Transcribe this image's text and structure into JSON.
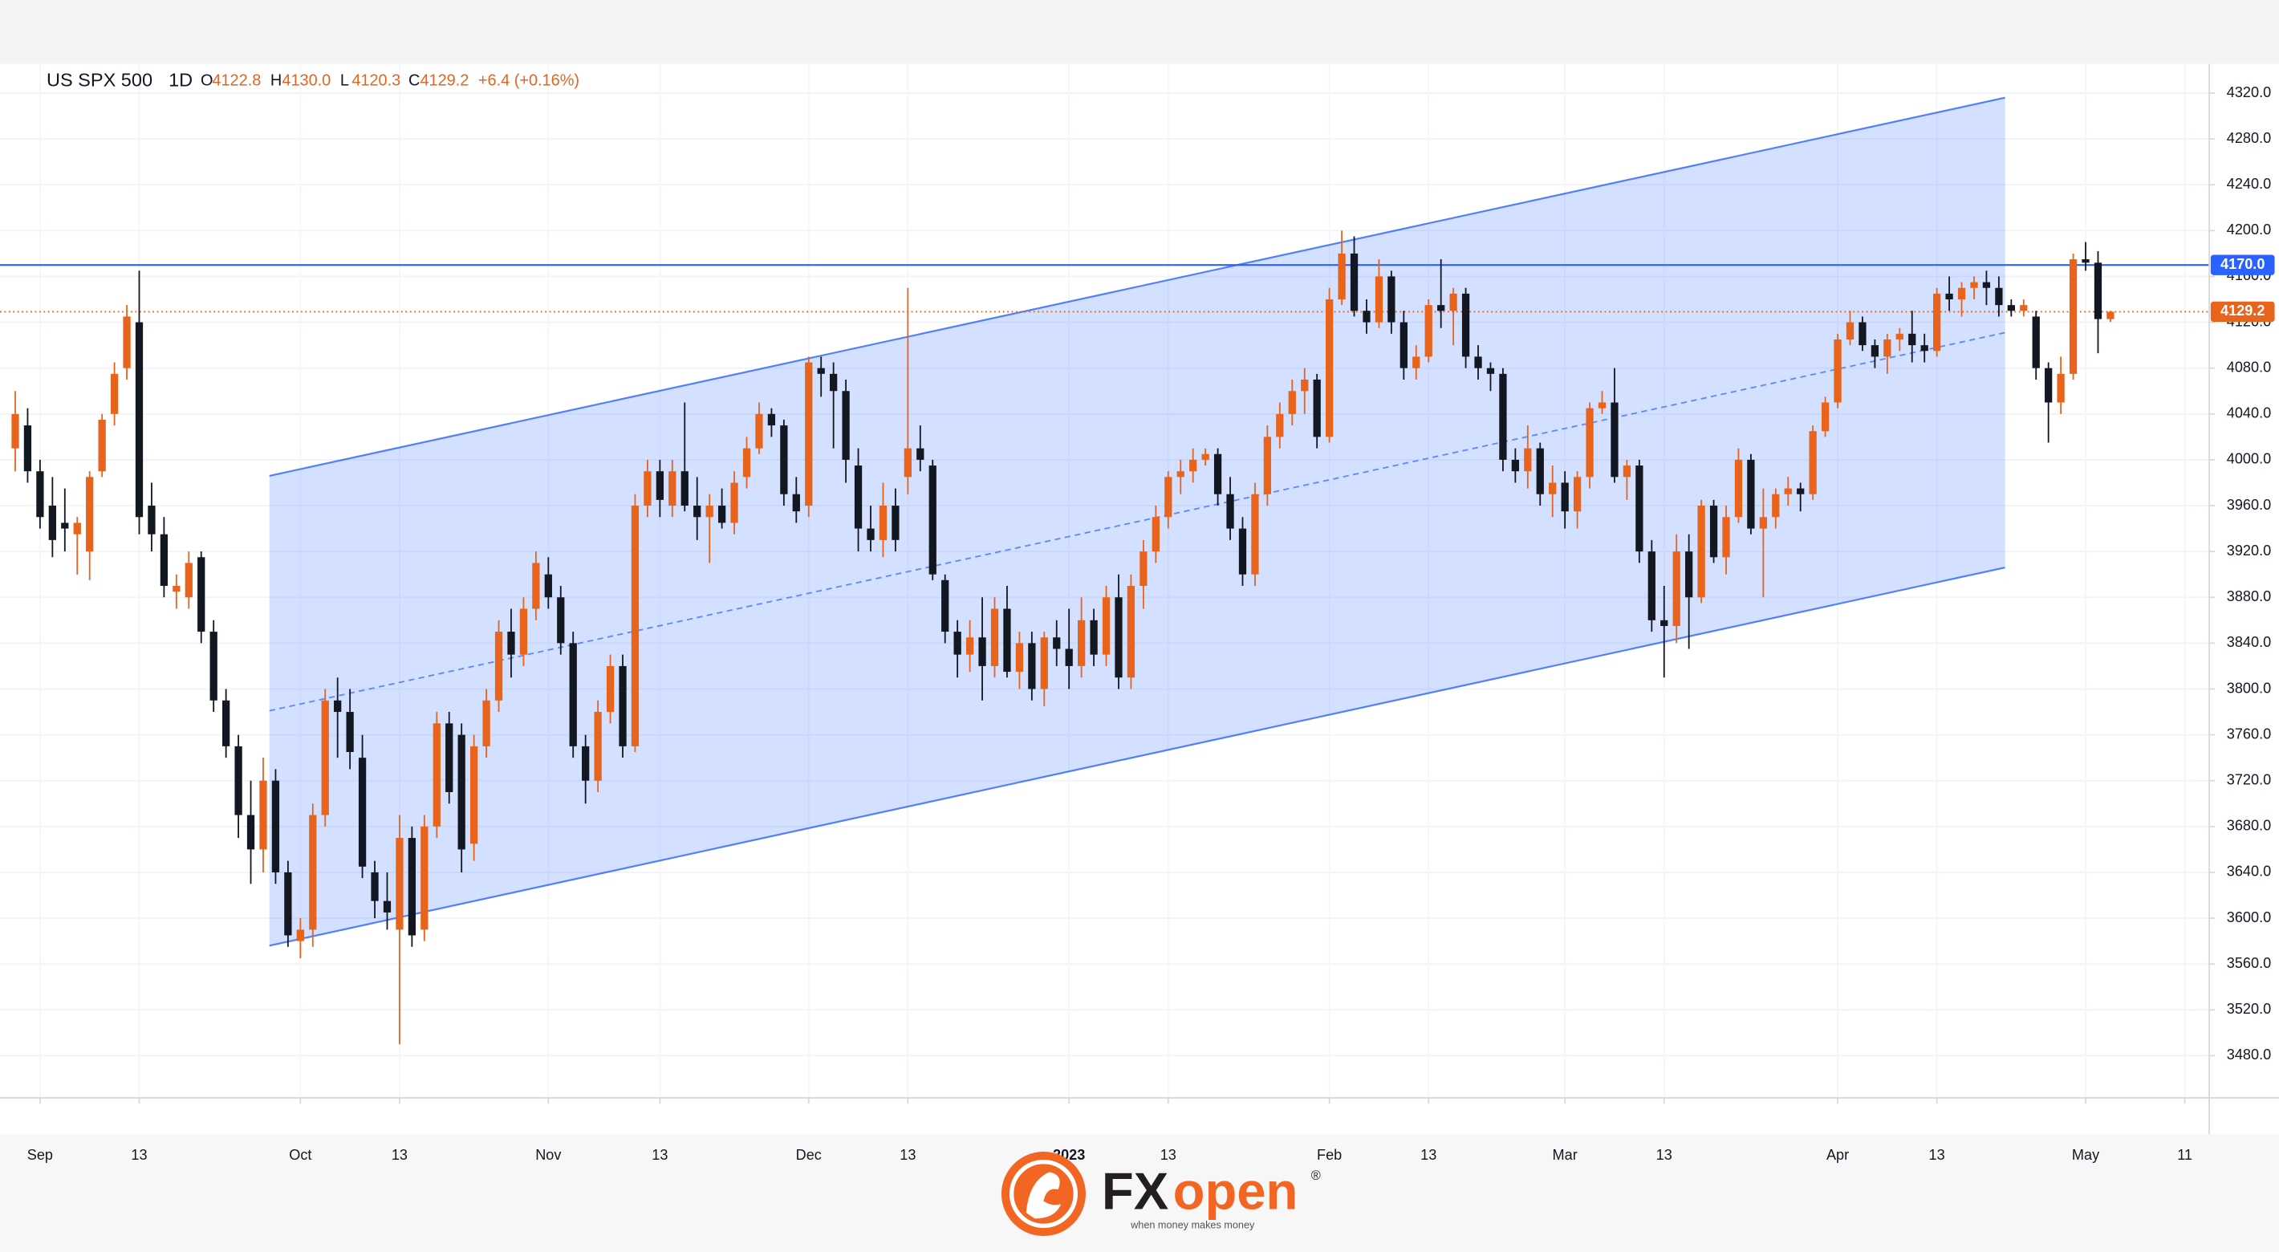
{
  "chart_data": {
    "type": "candlestick",
    "title": "US SPX 500",
    "interval": "1D",
    "header": [
      {
        "key": "O",
        "value": "4122.8"
      },
      {
        "key": "H",
        "value": "4130.0"
      },
      {
        "key": "L",
        "value": "4120.3"
      },
      {
        "key": "C",
        "value": "4129.2"
      }
    ],
    "change": "+6.4 (+0.16%)",
    "up_color": "#e8631b",
    "down_color": "#131722",
    "grid": true,
    "candles": [
      [
        4010,
        4060,
        3990,
        4040
      ],
      [
        4030,
        4045,
        3980,
        3990
      ],
      [
        3990,
        4000,
        3940,
        3950
      ],
      [
        3960,
        3985,
        3915,
        3930
      ],
      [
        3945,
        3975,
        3920,
        3940
      ],
      [
        3935,
        3950,
        3900,
        3945
      ],
      [
        3920,
        3990,
        3895,
        3985
      ],
      [
        3990,
        4040,
        3985,
        4035
      ],
      [
        4040,
        4085,
        4030,
        4075
      ],
      [
        4080,
        4135,
        4070,
        4125
      ],
      [
        4120,
        4165,
        3935,
        3950
      ],
      [
        3960,
        3980,
        3920,
        3935
      ],
      [
        3935,
        3950,
        3880,
        3890
      ],
      [
        3885,
        3900,
        3870,
        3890
      ],
      [
        3880,
        3920,
        3870,
        3910
      ],
      [
        3915,
        3920,
        3840,
        3850
      ],
      [
        3850,
        3860,
        3780,
        3790
      ],
      [
        3790,
        3800,
        3740,
        3750
      ],
      [
        3750,
        3760,
        3670,
        3690
      ],
      [
        3690,
        3720,
        3630,
        3660
      ],
      [
        3660,
        3740,
        3640,
        3720
      ],
      [
        3720,
        3730,
        3630,
        3640
      ],
      [
        3640,
        3650,
        3575,
        3585
      ],
      [
        3580,
        3600,
        3565,
        3590
      ],
      [
        3590,
        3700,
        3575,
        3690
      ],
      [
        3690,
        3800,
        3680,
        3790
      ],
      [
        3790,
        3810,
        3740,
        3780
      ],
      [
        3780,
        3800,
        3730,
        3745
      ],
      [
        3740,
        3760,
        3635,
        3645
      ],
      [
        3640,
        3650,
        3600,
        3615
      ],
      [
        3615,
        3640,
        3590,
        3605
      ],
      [
        3590,
        3690,
        3490,
        3670
      ],
      [
        3670,
        3680,
        3575,
        3585
      ],
      [
        3590,
        3690,
        3580,
        3680
      ],
      [
        3680,
        3780,
        3670,
        3770
      ],
      [
        3770,
        3780,
        3700,
        3710
      ],
      [
        3760,
        3770,
        3640,
        3660
      ],
      [
        3665,
        3760,
        3650,
        3750
      ],
      [
        3750,
        3800,
        3740,
        3790
      ],
      [
        3790,
        3860,
        3780,
        3850
      ],
      [
        3850,
        3870,
        3810,
        3830
      ],
      [
        3830,
        3880,
        3820,
        3870
      ],
      [
        3870,
        3920,
        3860,
        3910
      ],
      [
        3900,
        3915,
        3870,
        3880
      ],
      [
        3880,
        3890,
        3830,
        3840
      ],
      [
        3840,
        3850,
        3740,
        3750
      ],
      [
        3750,
        3760,
        3700,
        3720
      ],
      [
        3720,
        3790,
        3710,
        3780
      ],
      [
        3780,
        3830,
        3770,
        3820
      ],
      [
        3820,
        3830,
        3740,
        3750
      ],
      [
        3750,
        3970,
        3745,
        3960
      ],
      [
        3960,
        4000,
        3950,
        3990
      ],
      [
        3990,
        4000,
        3950,
        3965
      ],
      [
        3960,
        4000,
        3950,
        3990
      ],
      [
        3990,
        4050,
        3955,
        3960
      ],
      [
        3960,
        3985,
        3930,
        3950
      ],
      [
        3950,
        3970,
        3910,
        3960
      ],
      [
        3960,
        3975,
        3940,
        3945
      ],
      [
        3945,
        3990,
        3935,
        3980
      ],
      [
        3985,
        4020,
        3975,
        4010
      ],
      [
        4010,
        4050,
        4005,
        4040
      ],
      [
        4040,
        4045,
        4020,
        4030
      ],
      [
        4030,
        4035,
        3960,
        3970
      ],
      [
        3970,
        3985,
        3945,
        3955
      ],
      [
        3960,
        4090,
        3950,
        4085
      ],
      [
        4080,
        4090,
        4055,
        4075
      ],
      [
        4075,
        4085,
        4010,
        4060
      ],
      [
        4060,
        4070,
        3980,
        4000
      ],
      [
        3995,
        4010,
        3920,
        3940
      ],
      [
        3940,
        3960,
        3920,
        3930
      ],
      [
        3930,
        3980,
        3915,
        3960
      ],
      [
        3960,
        3975,
        3920,
        3930
      ],
      [
        3985,
        4150,
        3970,
        4010
      ],
      [
        4010,
        4030,
        3990,
        4000
      ],
      [
        3995,
        4000,
        3895,
        3900
      ],
      [
        3895,
        3900,
        3840,
        3850
      ],
      [
        3850,
        3860,
        3810,
        3830
      ],
      [
        3830,
        3860,
        3815,
        3845
      ],
      [
        3845,
        3880,
        3790,
        3820
      ],
      [
        3820,
        3880,
        3810,
        3870
      ],
      [
        3870,
        3890,
        3810,
        3815
      ],
      [
        3815,
        3850,
        3800,
        3840
      ],
      [
        3840,
        3850,
        3790,
        3800
      ],
      [
        3800,
        3850,
        3785,
        3845
      ],
      [
        3845,
        3860,
        3820,
        3835
      ],
      [
        3835,
        3870,
        3800,
        3820
      ],
      [
        3820,
        3880,
        3810,
        3860
      ],
      [
        3860,
        3870,
        3820,
        3830
      ],
      [
        3830,
        3890,
        3820,
        3880
      ],
      [
        3880,
        3900,
        3800,
        3810
      ],
      [
        3810,
        3900,
        3800,
        3890
      ],
      [
        3890,
        3930,
        3870,
        3920
      ],
      [
        3920,
        3960,
        3910,
        3950
      ],
      [
        3950,
        3990,
        3940,
        3985
      ],
      [
        3985,
        4000,
        3970,
        3990
      ],
      [
        3990,
        4010,
        3980,
        4000
      ],
      [
        4000,
        4010,
        3995,
        4005
      ],
      [
        4005,
        4010,
        3960,
        3970
      ],
      [
        3970,
        3985,
        3930,
        3940
      ],
      [
        3940,
        3950,
        3890,
        3900
      ],
      [
        3900,
        3980,
        3890,
        3970
      ],
      [
        3970,
        4030,
        3960,
        4020
      ],
      [
        4020,
        4050,
        4010,
        4040
      ],
      [
        4040,
        4070,
        4030,
        4060
      ],
      [
        4060,
        4080,
        4040,
        4070
      ],
      [
        4070,
        4075,
        4010,
        4020
      ],
      [
        4020,
        4150,
        4015,
        4140
      ],
      [
        4140,
        4200,
        4135,
        4180
      ],
      [
        4180,
        4195,
        4125,
        4130
      ],
      [
        4130,
        4140,
        4110,
        4120
      ],
      [
        4120,
        4175,
        4115,
        4160
      ],
      [
        4160,
        4165,
        4110,
        4120
      ],
      [
        4120,
        4130,
        4070,
        4080
      ],
      [
        4080,
        4100,
        4070,
        4090
      ],
      [
        4090,
        4140,
        4085,
        4135
      ],
      [
        4135,
        4175,
        4115,
        4130
      ],
      [
        4130,
        4150,
        4100,
        4145
      ],
      [
        4145,
        4150,
        4080,
        4090
      ],
      [
        4090,
        4100,
        4070,
        4080
      ],
      [
        4080,
        4085,
        4060,
        4075
      ],
      [
        4075,
        4080,
        3990,
        4000
      ],
      [
        4000,
        4010,
        3980,
        3990
      ],
      [
        3990,
        4030,
        3975,
        4010
      ],
      [
        4010,
        4015,
        3960,
        3970
      ],
      [
        3970,
        3995,
        3950,
        3980
      ],
      [
        3980,
        3990,
        3940,
        3955
      ],
      [
        3955,
        3990,
        3940,
        3985
      ],
      [
        3985,
        4050,
        3975,
        4045
      ],
      [
        4045,
        4060,
        4040,
        4050
      ],
      [
        4050,
        4080,
        3980,
        3985
      ],
      [
        3985,
        4000,
        3965,
        3995
      ],
      [
        3995,
        4000,
        3910,
        3920
      ],
      [
        3920,
        3930,
        3850,
        3860
      ],
      [
        3860,
        3890,
        3810,
        3855
      ],
      [
        3855,
        3935,
        3840,
        3920
      ],
      [
        3920,
        3935,
        3835,
        3880
      ],
      [
        3880,
        3965,
        3875,
        3960
      ],
      [
        3960,
        3965,
        3910,
        3915
      ],
      [
        3915,
        3960,
        3900,
        3950
      ],
      [
        3950,
        4010,
        3945,
        4000
      ],
      [
        4000,
        4005,
        3935,
        3940
      ],
      [
        3940,
        3975,
        3880,
        3950
      ],
      [
        3950,
        3975,
        3940,
        3970
      ],
      [
        3970,
        3985,
        3960,
        3975
      ],
      [
        3975,
        3980,
        3955,
        3970
      ],
      [
        3970,
        4030,
        3965,
        4025
      ],
      [
        4025,
        4055,
        4020,
        4050
      ],
      [
        4050,
        4110,
        4045,
        4105
      ],
      [
        4105,
        4130,
        4100,
        4120
      ],
      [
        4120,
        4125,
        4095,
        4100
      ],
      [
        4100,
        4105,
        4080,
        4090
      ],
      [
        4090,
        4110,
        4075,
        4105
      ],
      [
        4105,
        4115,
        4095,
        4110
      ],
      [
        4110,
        4130,
        4085,
        4100
      ],
      [
        4100,
        4110,
        4085,
        4095
      ],
      [
        4095,
        4150,
        4090,
        4145
      ],
      [
        4145,
        4160,
        4130,
        4140
      ],
      [
        4140,
        4155,
        4125,
        4150
      ],
      [
        4150,
        4160,
        4140,
        4155
      ],
      [
        4155,
        4165,
        4135,
        4150
      ],
      [
        4150,
        4160,
        4125,
        4135
      ],
      [
        4135,
        4140,
        4125,
        4130
      ],
      [
        4130,
        4140,
        4125,
        4135
      ],
      [
        4125,
        4130,
        4070,
        4080
      ],
      [
        4080,
        4085,
        4015,
        4050
      ],
      [
        4050,
        4090,
        4040,
        4075
      ],
      [
        4075,
        4180,
        4070,
        4175
      ],
      [
        4175,
        4190,
        4165,
        4172
      ],
      [
        4172,
        4182,
        4093,
        4122.8
      ],
      [
        4122.8,
        4130.0,
        4120.3,
        4129.2
      ]
    ],
    "xlim": [
      -1.23,
      176.97
    ],
    "xticks": [
      {
        "value": 2,
        "label": "Sep"
      },
      {
        "value": 10,
        "label": "13"
      },
      {
        "value": 23,
        "label": "Oct"
      },
      {
        "value": 31,
        "label": "13"
      },
      {
        "value": 43,
        "label": "Nov"
      },
      {
        "value": 52,
        "label": "13"
      },
      {
        "value": 64,
        "label": "Dec"
      },
      {
        "value": 72,
        "label": "13"
      },
      {
        "value": 85,
        "label": "2023"
      },
      {
        "value": 93,
        "label": "13"
      },
      {
        "value": 106,
        "label": "Feb"
      },
      {
        "value": 114,
        "label": "13"
      },
      {
        "value": 125,
        "label": "Mar"
      },
      {
        "value": 133,
        "label": "13"
      },
      {
        "value": 147,
        "label": "Apr"
      },
      {
        "value": 155,
        "label": "13"
      },
      {
        "value": 167,
        "label": "May"
      },
      {
        "value": 175,
        "label": "11"
      }
    ],
    "ylim": [
      3443.2,
      4345.4
    ],
    "yticks": [
      {
        "value": 3480,
        "label": "3480.0"
      },
      {
        "value": 3520,
        "label": "3520.0"
      },
      {
        "value": 3560,
        "label": "3560.0"
      },
      {
        "value": 3600,
        "label": "3600.0"
      },
      {
        "value": 3640,
        "label": "3640.0"
      },
      {
        "value": 3680,
        "label": "3680.0"
      },
      {
        "value": 3720,
        "label": "3720.0"
      },
      {
        "value": 3760,
        "label": "3760.0"
      },
      {
        "value": 3800,
        "label": "3800.0"
      },
      {
        "value": 3840,
        "label": "3840.0"
      },
      {
        "value": 3880,
        "label": "3880.0"
      },
      {
        "value": 3920,
        "label": "3920.0"
      },
      {
        "value": 3960,
        "label": "3960.0"
      },
      {
        "value": 4000,
        "label": "4000.0"
      },
      {
        "value": 4040,
        "label": "4040.0"
      },
      {
        "value": 4080,
        "label": "4080.0"
      },
      {
        "value": 4120,
        "label": "4120.0"
      },
      {
        "value": 4160,
        "label": "4160.0"
      },
      {
        "value": 4200,
        "label": "4200.0"
      },
      {
        "value": 4240,
        "label": "4240.0"
      },
      {
        "value": 4280,
        "label": "4280.0"
      },
      {
        "value": 4320,
        "label": "4320.0"
      }
    ],
    "hline": {
      "value": 4170.0,
      "label": "4170.0",
      "color": "#2962ff"
    },
    "last_price": {
      "value": 4129.2,
      "label": "4129.2"
    },
    "channel": {
      "x": [
        20.5,
        160.5
      ],
      "upper": [
        3986,
        4316
      ],
      "lower": [
        3576,
        3906
      ],
      "color": "#2962ff"
    }
  },
  "logo": {
    "brand_dark": "FX",
    "brand_accent": "open",
    "mark": "®",
    "tagline": "when money makes money"
  }
}
